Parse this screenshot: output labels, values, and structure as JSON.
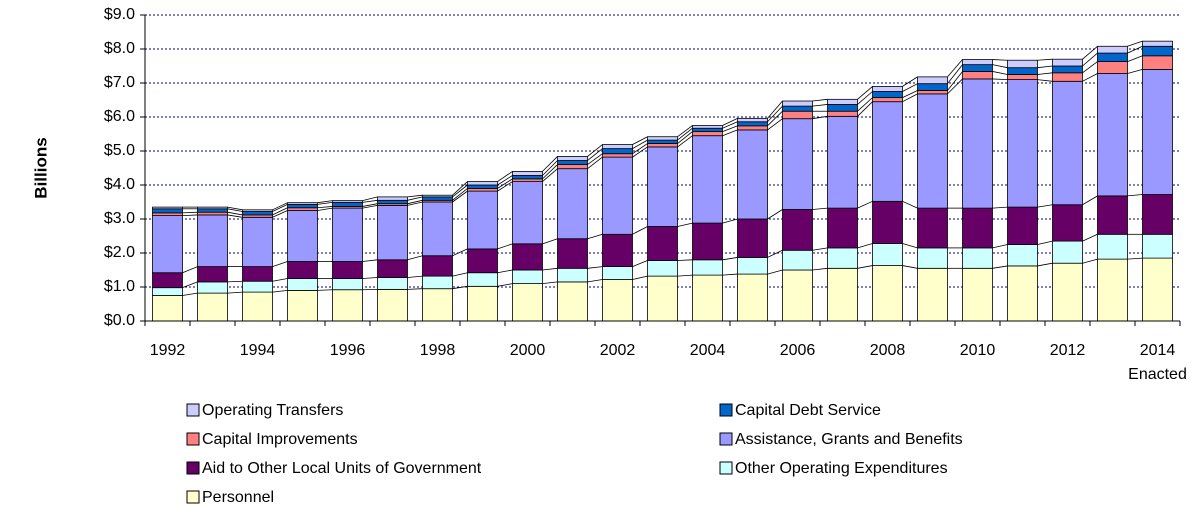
{
  "chart_data": {
    "type": "stacked-bar",
    "y_label": "Billions",
    "categories": [
      "1992",
      null,
      "1994",
      null,
      "1996",
      null,
      "1998",
      null,
      "2000",
      null,
      "2002",
      null,
      "2004",
      null,
      "2006",
      null,
      "2008",
      null,
      "2010",
      null,
      "2012",
      null,
      "2014"
    ],
    "annotations": [
      "Enacted"
    ],
    "series": [
      {
        "name": "Personnel",
        "color": "#ffffcc",
        "values": [
          0.75,
          0.82,
          0.85,
          0.9,
          0.92,
          0.93,
          0.95,
          1.02,
          1.1,
          1.15,
          1.22,
          1.32,
          1.35,
          1.38,
          1.5,
          1.55,
          1.63,
          1.55,
          1.55,
          1.62,
          1.7,
          1.82,
          1.85
        ]
      },
      {
        "name": "Other Operating Expenditures",
        "color": "#ccffff",
        "values": [
          0.23,
          0.33,
          0.32,
          0.35,
          0.33,
          0.35,
          0.37,
          0.4,
          0.4,
          0.4,
          0.38,
          0.46,
          0.45,
          0.49,
          0.58,
          0.6,
          0.65,
          0.6,
          0.6,
          0.63,
          0.65,
          0.73,
          0.7
        ]
      },
      {
        "name": "Aid to Other Local Units of Government",
        "color": "#660066",
        "values": [
          0.44,
          0.45,
          0.43,
          0.5,
          0.5,
          0.52,
          0.6,
          0.7,
          0.77,
          0.87,
          0.95,
          1.0,
          1.08,
          1.13,
          1.2,
          1.17,
          1.24,
          1.17,
          1.17,
          1.1,
          1.07,
          1.13,
          1.17
        ]
      },
      {
        "name": "Assistance, Grants and Benefits",
        "color": "#9999ff",
        "values": [
          1.68,
          1.52,
          1.45,
          1.5,
          1.57,
          1.6,
          1.58,
          1.7,
          1.83,
          2.06,
          2.27,
          2.34,
          2.57,
          2.62,
          2.67,
          2.7,
          2.93,
          3.36,
          3.8,
          3.75,
          3.63,
          3.6,
          3.68
        ]
      },
      {
        "name": "Capital Improvements",
        "color": "#ff8080",
        "values": [
          0.08,
          0.08,
          0.07,
          0.08,
          0.05,
          0.05,
          0.05,
          0.08,
          0.08,
          0.12,
          0.1,
          0.1,
          0.12,
          0.12,
          0.22,
          0.15,
          0.12,
          0.1,
          0.22,
          0.15,
          0.25,
          0.35,
          0.4
        ]
      },
      {
        "name": "Capital Debt Service",
        "color": "#0066cc",
        "values": [
          0.12,
          0.1,
          0.1,
          0.1,
          0.12,
          0.1,
          0.1,
          0.1,
          0.1,
          0.12,
          0.15,
          0.1,
          0.1,
          0.12,
          0.15,
          0.2,
          0.18,
          0.2,
          0.2,
          0.2,
          0.2,
          0.25,
          0.28
        ]
      },
      {
        "name": "Operating Transfers",
        "color": "#ccccff",
        "values": [
          0.05,
          0.05,
          0.05,
          0.05,
          0.05,
          0.1,
          0.05,
          0.1,
          0.12,
          0.12,
          0.12,
          0.1,
          0.08,
          0.1,
          0.15,
          0.15,
          0.15,
          0.2,
          0.15,
          0.22,
          0.2,
          0.2,
          0.15
        ]
      }
    ],
    "ylim": [
      0,
      9
    ],
    "yticks": [
      {
        "value": 0,
        "label": "$0.0"
      },
      {
        "value": 1,
        "label": "$1.0"
      },
      {
        "value": 2,
        "label": "$2.0"
      },
      {
        "value": 3,
        "label": "$3.0"
      },
      {
        "value": 4,
        "label": "$4.0"
      },
      {
        "value": 5,
        "label": "$5.0"
      },
      {
        "value": 6,
        "label": "$6.0"
      },
      {
        "value": 7,
        "label": "$7.0"
      },
      {
        "value": 8,
        "label": "$8.0"
      },
      {
        "value": 9,
        "label": "$9.0"
      }
    ],
    "grid": true
  }
}
